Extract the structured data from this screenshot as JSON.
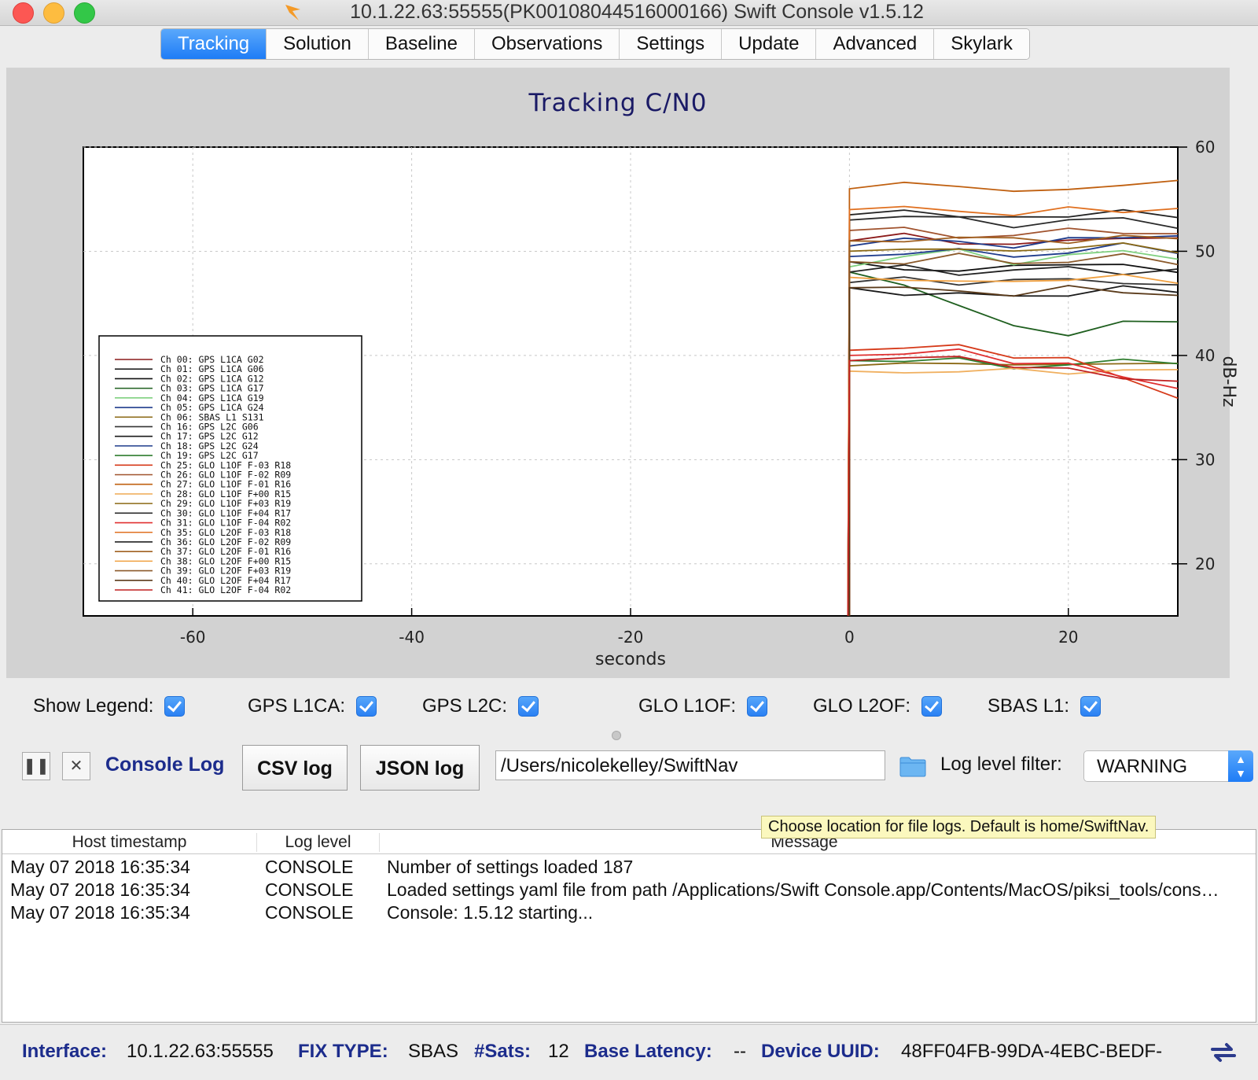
{
  "window": {
    "title": "10.1.22.63:55555(PK00108044516000166) Swift Console v1.5.12"
  },
  "tabs": [
    {
      "label": "Tracking",
      "active": true
    },
    {
      "label": "Solution"
    },
    {
      "label": "Baseline"
    },
    {
      "label": "Observations"
    },
    {
      "label": "Settings"
    },
    {
      "label": "Update"
    },
    {
      "label": "Advanced"
    },
    {
      "label": "Skylark"
    }
  ],
  "chart_data": {
    "type": "line",
    "title": "Tracking C/N0",
    "xlabel": "seconds",
    "ylabel": "dB-Hz",
    "xlim": [
      -70,
      30
    ],
    "ylim": [
      15,
      60
    ],
    "xticks": [
      -60,
      -40,
      -20,
      0,
      20
    ],
    "yticks": [
      20,
      30,
      40,
      50,
      60
    ],
    "grid": true,
    "legend_position": "left",
    "series": [
      {
        "name": "Ch 00: GPS L1CA G02",
        "color": "#8b1a1a",
        "x": [
          0,
          5,
          10,
          15,
          20,
          25,
          30
        ],
        "y": [
          51,
          51.5,
          51,
          50.5,
          51,
          51.5,
          51
        ]
      },
      {
        "name": "Ch 01: GPS L1CA G06",
        "color": "#222222",
        "x": [
          0,
          5,
          10,
          15,
          20,
          25,
          30
        ],
        "y": [
          53.5,
          54,
          53.5,
          53,
          53.5,
          54,
          53
        ]
      },
      {
        "name": "Ch 02: GPS L1CA G12",
        "color": "#111111",
        "x": [
          0,
          5,
          10,
          15,
          20,
          25,
          30
        ],
        "y": [
          49,
          48.5,
          48,
          48.5,
          49,
          48.5,
          48
        ]
      },
      {
        "name": "Ch 03: GPS L1CA G17",
        "color": "#1f5f1f",
        "x": [
          0,
          5,
          10,
          15,
          20,
          25,
          30
        ],
        "y": [
          48,
          47,
          44.5,
          43,
          42,
          43,
          43.5
        ]
      },
      {
        "name": "Ch 04: GPS L1CA G19",
        "color": "#7fd07f",
        "x": [
          0,
          5,
          10,
          15,
          20,
          25,
          30
        ],
        "y": [
          48.5,
          49.5,
          50,
          49,
          49.5,
          50,
          49.5
        ]
      },
      {
        "name": "Ch 05: GPS L1CA G24",
        "color": "#1f3c8c",
        "x": [
          0,
          5,
          10,
          15,
          20,
          25,
          30
        ],
        "y": [
          50.5,
          51,
          51,
          50.5,
          51,
          51.5,
          51.5
        ]
      },
      {
        "name": "Ch 06: SBAS L1 S131",
        "color": "#8b6914",
        "x": [
          0,
          5,
          10,
          15,
          20,
          25,
          30
        ],
        "y": [
          39,
          39,
          39.5,
          39,
          39,
          39.5,
          39
        ]
      },
      {
        "name": "Ch 16: GPS L2C G06",
        "color": "#333333",
        "x": [
          0,
          5,
          10,
          15,
          20,
          25,
          30
        ],
        "y": [
          47,
          47.5,
          47,
          47,
          47.5,
          47,
          46.5
        ]
      },
      {
        "name": "Ch 17: GPS L2C G12",
        "color": "#1a1a1a",
        "x": [
          0,
          5,
          10,
          15,
          20,
          25,
          30
        ],
        "y": [
          46.5,
          46,
          46,
          45.5,
          46,
          46.5,
          46
        ]
      },
      {
        "name": "Ch 18: GPS L2C G24",
        "color": "#1f3c8c",
        "x": [
          0,
          5,
          10,
          15,
          20,
          25,
          30
        ],
        "y": [
          49.5,
          50,
          50,
          49.5,
          50,
          50.5,
          50
        ]
      },
      {
        "name": "Ch 19: GPS L2C G17",
        "color": "#2e7d2e",
        "x": [
          0,
          5,
          10,
          15,
          20,
          25,
          30
        ],
        "y": [
          39.5,
          39.5,
          39.5,
          39,
          39,
          39.5,
          39.5
        ]
      },
      {
        "name": "Ch 25: GLO L1OF F-03 R18",
        "color": "#d63a1a",
        "x": [
          0,
          5,
          10,
          15,
          20,
          25,
          30
        ],
        "y": [
          40.5,
          40.5,
          41,
          40,
          39.5,
          38,
          36
        ]
      },
      {
        "name": "Ch 26: GLO L1OF F-02 R09",
        "color": "#a0522d",
        "x": [
          0,
          5,
          10,
          15,
          20,
          25,
          30
        ],
        "y": [
          52,
          52,
          51.5,
          51.5,
          52,
          52,
          51.5
        ]
      },
      {
        "name": "Ch 27: GLO L1OF F-01 R16",
        "color": "#c06010",
        "x": [
          0,
          5,
          10,
          15,
          20,
          25,
          30
        ],
        "y": [
          56,
          56.5,
          56.5,
          55.5,
          56,
          56.5,
          56.5
        ]
      },
      {
        "name": "Ch 28: GLO L1OF F+00 R15",
        "color": "#f0b060",
        "x": [
          0,
          5,
          10,
          15,
          20,
          25,
          30
        ],
        "y": [
          38.5,
          38.5,
          38.5,
          38.5,
          38.5,
          38.5,
          38.5
        ]
      },
      {
        "name": "Ch 29: GLO L1OF F+03 R19",
        "color": "#8b6914",
        "x": [
          0,
          5,
          10,
          15,
          20,
          25,
          30
        ],
        "y": [
          50,
          50.5,
          50,
          50,
          50.5,
          50.5,
          50
        ]
      },
      {
        "name": "Ch 30: GLO L1OF F+04 R17",
        "color": "#2a2a2a",
        "x": [
          0,
          5,
          10,
          15,
          20,
          25,
          30
        ],
        "y": [
          53,
          53.5,
          53,
          52.5,
          53,
          53,
          52.5
        ]
      },
      {
        "name": "Ch 31: GLO L1OF F-04 R02",
        "color": "#e03030",
        "x": [
          0,
          5,
          10,
          15,
          20,
          25,
          30
        ],
        "y": [
          40,
          40,
          40.5,
          39.5,
          39,
          38,
          37
        ]
      },
      {
        "name": "Ch 35: GLO L2OF F-03 R18",
        "color": "#e07020",
        "x": [
          0,
          5,
          10,
          15,
          20,
          25,
          30
        ],
        "y": [
          54,
          54,
          54,
          53.5,
          54,
          54,
          54
        ]
      },
      {
        "name": "Ch 36: GLO L2OF F-02 R09",
        "color": "#222222",
        "x": [
          0,
          5,
          10,
          15,
          20,
          25,
          30
        ],
        "y": [
          48,
          48.5,
          48,
          48,
          48.5,
          48,
          48
        ]
      },
      {
        "name": "Ch 37: GLO L2OF F-01 R16",
        "color": "#a06020",
        "x": [
          0,
          5,
          10,
          15,
          20,
          25,
          30
        ],
        "y": [
          51,
          51,
          51.5,
          51,
          51,
          51.5,
          51
        ]
      },
      {
        "name": "Ch 38: GLO L2OF F+00 R15",
        "color": "#f0a040",
        "x": [
          0,
          5,
          10,
          15,
          20,
          25,
          30
        ],
        "y": [
          47.5,
          47.5,
          47,
          47,
          47.5,
          47.5,
          47
        ]
      },
      {
        "name": "Ch 39: GLO L2OF F+03 R19",
        "color": "#8b5a2b",
        "x": [
          0,
          5,
          10,
          15,
          20,
          25,
          30
        ],
        "y": [
          49,
          49,
          49.5,
          49,
          49,
          49.5,
          49
        ]
      },
      {
        "name": "Ch 40: GLO L2OF F+04 R17",
        "color": "#5a3a1a",
        "x": [
          0,
          5,
          10,
          15,
          20,
          25,
          30
        ],
        "y": [
          46.5,
          46.5,
          46,
          46,
          46.5,
          46,
          46
        ]
      },
      {
        "name": "Ch 41: GLO L2OF F-04 R02",
        "color": "#c02020",
        "x": [
          0,
          5,
          10,
          15,
          20,
          25,
          30
        ],
        "y": [
          39.5,
          39.5,
          40,
          39,
          38.5,
          38,
          37.5
        ]
      }
    ]
  },
  "filters": [
    {
      "label": "Show Legend:",
      "checked": true
    },
    {
      "label": "GPS L1CA:",
      "checked": true
    },
    {
      "label": "GPS L2C:",
      "checked": true
    },
    {
      "label": "GLO L1OF:",
      "checked": true
    },
    {
      "label": "GLO L2OF:",
      "checked": true
    },
    {
      "label": "SBAS L1:",
      "checked": true
    }
  ],
  "toolbar": {
    "pause_icon": "pause-icon",
    "clear_icon": "close-icon",
    "console_label": "Console Log",
    "csv_label": "CSV log",
    "json_label": "JSON log",
    "path_value": "/Users/nicolekelley/SwiftNav",
    "folder_icon": "folder-icon",
    "filter_label": "Log level filter:",
    "filter_value": "WARNING"
  },
  "tooltip": "Choose location for file logs. Default is home/SwiftNav.",
  "log": {
    "columns": [
      "Host timestamp",
      "Log level",
      "Message"
    ],
    "rows": [
      {
        "ts": "May 07 2018 16:35:34",
        "level": "CONSOLE",
        "msg": "Number of settings loaded 187"
      },
      {
        "ts": "May 07 2018 16:35:34",
        "level": "CONSOLE",
        "msg": "Loaded settings yaml file from path /Applications/Swift Console.app/Contents/MacOS/piksi_tools/cons…"
      },
      {
        "ts": "May 07 2018 16:35:34",
        "level": "CONSOLE",
        "msg": "Console: 1.5.12 starting..."
      }
    ]
  },
  "status": {
    "interface_label": "Interface:",
    "interface_value": "10.1.22.63:55555",
    "fix_label": "FIX TYPE:",
    "fix_value": "SBAS",
    "sats_label": "#Sats:",
    "sats_value": "12",
    "latency_label": "Base Latency:",
    "latency_value": "--",
    "uuid_label": "Device UUID:",
    "uuid_value": "48FF04FB-99DA-4EBC-BEDF-"
  }
}
